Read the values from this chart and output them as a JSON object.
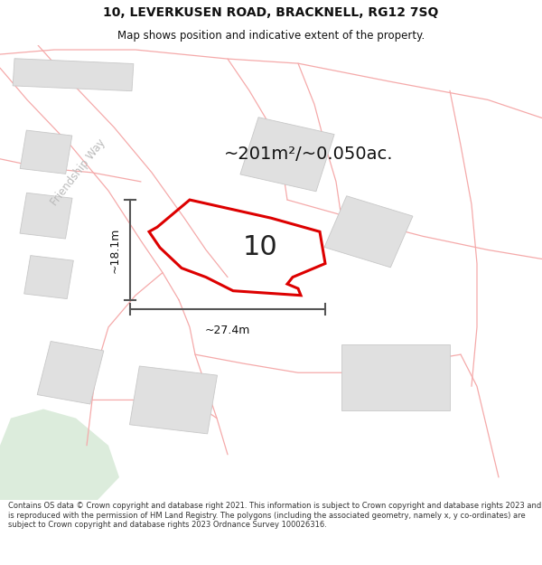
{
  "title": "10, LEVERKUSEN ROAD, BRACKNELL, RG12 7SQ",
  "subtitle": "Map shows position and indicative extent of the property.",
  "area_text": "~201m²/~0.050ac.",
  "number_label": "10",
  "dim_h": "~18.1m",
  "dim_w": "~27.4m",
  "footer": "Contains OS data © Crown copyright and database right 2021. This information is subject to Crown copyright and database rights 2023 and is reproduced with the permission of HM Land Registry. The polygons (including the associated geometry, namely x, y co-ordinates) are subject to Crown copyright and database rights 2023 Ordnance Survey 100026316.",
  "map_bg": "#ffffff",
  "road_color": "#f5aaaa",
  "building_color": "#e0e0e0",
  "building_edge": "#c8c8c8",
  "property_color": "#dd0000",
  "dim_color": "#555555",
  "title_color": "#111111",
  "road_label_color": "#bbbbbb",
  "road_label": "Friendship Way",
  "green_color": "#d4e8d4",
  "title_fs": 10,
  "subtitle_fs": 8.5,
  "area_fs": 14,
  "number_fs": 22,
  "dim_fs": 9,
  "footer_fs": 6.0
}
